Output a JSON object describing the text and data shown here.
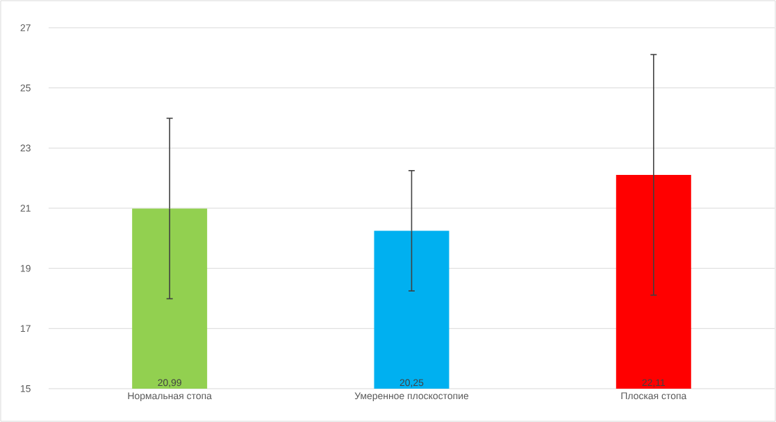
{
  "chart_data": {
    "type": "bar",
    "categories": [
      "Нормальная стопа",
      "Умеренное плоскостопие",
      "Плоская стопа"
    ],
    "values": [
      20.99,
      20.25,
      22.11
    ],
    "colors": [
      "#92d050",
      "#00b0f0",
      "#ff0000"
    ],
    "errors": [
      3,
      2,
      4
    ],
    "value_labels": [
      "20,99",
      "20,25",
      "22,11"
    ],
    "ylim": [
      15,
      27
    ],
    "yticks": [
      15,
      17,
      19,
      21,
      23,
      25,
      27
    ],
    "grid": "y"
  }
}
